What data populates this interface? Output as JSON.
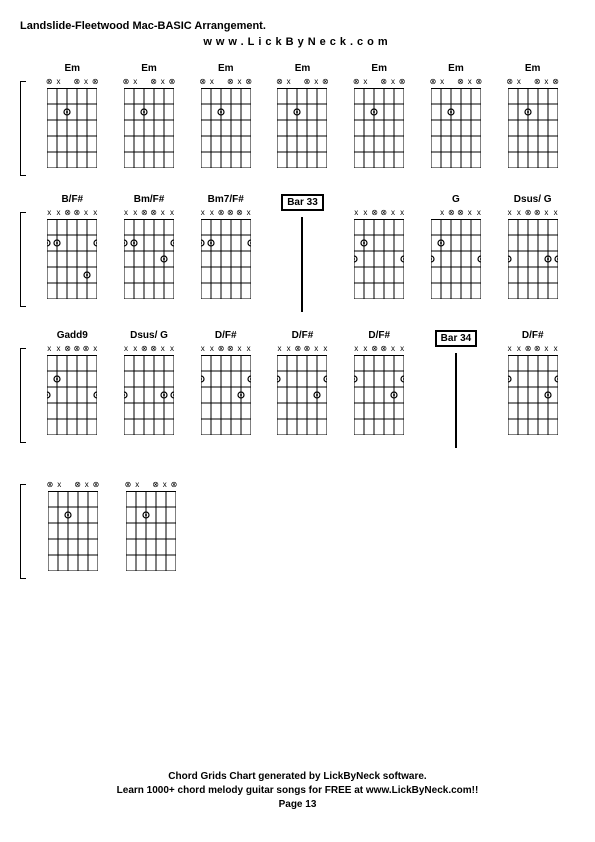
{
  "title": "Landslide-Fleetwood Mac-BASIC Arrangement.",
  "subtitle": "www.LickByNeck.com",
  "footer": {
    "line1": "Chord Grids Chart generated by LickByNeck software.",
    "line2": "Learn 1000+ chord melody guitar songs for FREE at www.LickByNeck.com!!",
    "line3": "Page 13"
  },
  "grid": {
    "strings": 6,
    "frets": 5,
    "width": 50,
    "height": 80,
    "stroke": "#000000",
    "stroke_width": 1,
    "dot_radius": 3
  },
  "rows": [
    {
      "items": [
        {
          "type": "chord",
          "name": "Em",
          "markers": [
            "⊗",
            "x",
            "",
            "⊗",
            "x",
            "⊗"
          ],
          "dots": [
            {
              "s": 2,
              "f": 2
            }
          ]
        },
        {
          "type": "chord",
          "name": "Em",
          "markers": [
            "⊗",
            "x",
            "",
            "⊗",
            "x",
            "⊗"
          ],
          "dots": [
            {
              "s": 2,
              "f": 2
            }
          ]
        },
        {
          "type": "chord",
          "name": "Em",
          "markers": [
            "⊗",
            "x",
            "",
            "⊗",
            "x",
            "⊗"
          ],
          "dots": [
            {
              "s": 2,
              "f": 2
            }
          ]
        },
        {
          "type": "chord",
          "name": "Em",
          "markers": [
            "⊗",
            "x",
            "",
            "⊗",
            "x",
            "⊗"
          ],
          "dots": [
            {
              "s": 2,
              "f": 2
            }
          ]
        },
        {
          "type": "chord",
          "name": "Em",
          "markers": [
            "⊗",
            "x",
            "",
            "⊗",
            "x",
            "⊗"
          ],
          "dots": [
            {
              "s": 2,
              "f": 2
            }
          ]
        },
        {
          "type": "chord",
          "name": "Em",
          "markers": [
            "⊗",
            "x",
            "",
            "⊗",
            "x",
            "⊗"
          ],
          "dots": [
            {
              "s": 2,
              "f": 2
            }
          ]
        },
        {
          "type": "chord",
          "name": "Em",
          "markers": [
            "⊗",
            "x",
            "",
            "⊗",
            "x",
            "⊗"
          ],
          "dots": [
            {
              "s": 2,
              "f": 2
            }
          ]
        }
      ]
    },
    {
      "items": [
        {
          "type": "chord",
          "name": "B/F#",
          "markers": [
            "x",
            "x",
            "⊗",
            "⊗",
            "x",
            "x"
          ],
          "dots": [
            {
              "s": 0,
              "f": 2
            },
            {
              "s": 1,
              "f": 2
            },
            {
              "s": 4,
              "f": 4
            },
            {
              "s": 5,
              "f": 2
            }
          ]
        },
        {
          "type": "chord",
          "name": "Bm/F#",
          "markers": [
            "x",
            "x",
            "⊗",
            "⊗",
            "x",
            "x"
          ],
          "dots": [
            {
              "s": 0,
              "f": 2
            },
            {
              "s": 1,
              "f": 2
            },
            {
              "s": 4,
              "f": 3
            },
            {
              "s": 5,
              "f": 2
            }
          ]
        },
        {
          "type": "chord",
          "name": "Bm7/F#",
          "markers": [
            "x",
            "x",
            "⊗",
            "⊗",
            "⊗",
            "x"
          ],
          "dots": [
            {
              "s": 0,
              "f": 2
            },
            {
              "s": 1,
              "f": 2
            },
            {
              "s": 5,
              "f": 2
            }
          ]
        },
        {
          "type": "bar",
          "label": "Bar 33"
        },
        {
          "type": "chord",
          "name": "",
          "markers": [
            "x",
            "x",
            "⊗",
            "⊗",
            "x",
            "x"
          ],
          "dots": [
            {
              "s": 0,
              "f": 3
            },
            {
              "s": 1,
              "f": 2
            },
            {
              "s": 5,
              "f": 3
            }
          ]
        },
        {
          "type": "chord",
          "name": "G",
          "markers": [
            "",
            "x",
            "⊗",
            "⊗",
            "x",
            "x"
          ],
          "dots": [
            {
              "s": 0,
              "f": 3
            },
            {
              "s": 1,
              "f": 2
            },
            {
              "s": 5,
              "f": 3
            }
          ]
        },
        {
          "type": "chord",
          "name": "Dsus/ G",
          "markers": [
            "x",
            "x",
            "⊗",
            "⊗",
            "x",
            "x"
          ],
          "dots": [
            {
              "s": 0,
              "f": 3
            },
            {
              "s": 4,
              "f": 3
            },
            {
              "s": 5,
              "f": 3
            }
          ]
        }
      ]
    },
    {
      "items": [
        {
          "type": "chord",
          "name": "Gadd9",
          "markers": [
            "x",
            "x",
            "⊗",
            "⊗",
            "⊗",
            "x"
          ],
          "dots": [
            {
              "s": 0,
              "f": 3
            },
            {
              "s": 1,
              "f": 2
            },
            {
              "s": 5,
              "f": 3
            }
          ]
        },
        {
          "type": "chord",
          "name": "Dsus/ G",
          "markers": [
            "x",
            "x",
            "⊗",
            "⊗",
            "x",
            "x"
          ],
          "dots": [
            {
              "s": 0,
              "f": 3
            },
            {
              "s": 4,
              "f": 3
            },
            {
              "s": 5,
              "f": 3
            }
          ]
        },
        {
          "type": "chord",
          "name": "D/F#",
          "markers": [
            "x",
            "x",
            "⊗",
            "⊗",
            "x",
            "x"
          ],
          "dots": [
            {
              "s": 0,
              "f": 2
            },
            {
              "s": 4,
              "f": 3
            },
            {
              "s": 5,
              "f": 2
            }
          ]
        },
        {
          "type": "chord",
          "name": "D/F#",
          "markers": [
            "x",
            "x",
            "⊗",
            "⊗",
            "x",
            "x"
          ],
          "dots": [
            {
              "s": 0,
              "f": 2
            },
            {
              "s": 4,
              "f": 3
            },
            {
              "s": 5,
              "f": 2
            }
          ]
        },
        {
          "type": "chord",
          "name": "D/F#",
          "markers": [
            "x",
            "x",
            "⊗",
            "⊗",
            "x",
            "x"
          ],
          "dots": [
            {
              "s": 0,
              "f": 2
            },
            {
              "s": 4,
              "f": 3
            },
            {
              "s": 5,
              "f": 2
            }
          ]
        },
        {
          "type": "bar",
          "label": "Bar 34"
        },
        {
          "type": "chord",
          "name": "D/F#",
          "markers": [
            "x",
            "x",
            "⊗",
            "⊗",
            "x",
            "x"
          ],
          "dots": [
            {
              "s": 0,
              "f": 2
            },
            {
              "s": 4,
              "f": 3
            },
            {
              "s": 5,
              "f": 2
            }
          ]
        }
      ]
    },
    {
      "items": [
        {
          "type": "chord",
          "name": "",
          "markers": [
            "⊗",
            "x",
            "",
            "⊗",
            "x",
            "⊗"
          ],
          "dots": [
            {
              "s": 2,
              "f": 2
            }
          ]
        },
        {
          "type": "chord",
          "name": "",
          "markers": [
            "⊗",
            "x",
            "",
            "⊗",
            "x",
            "⊗"
          ],
          "dots": [
            {
              "s": 2,
              "f": 2
            }
          ]
        }
      ]
    }
  ]
}
